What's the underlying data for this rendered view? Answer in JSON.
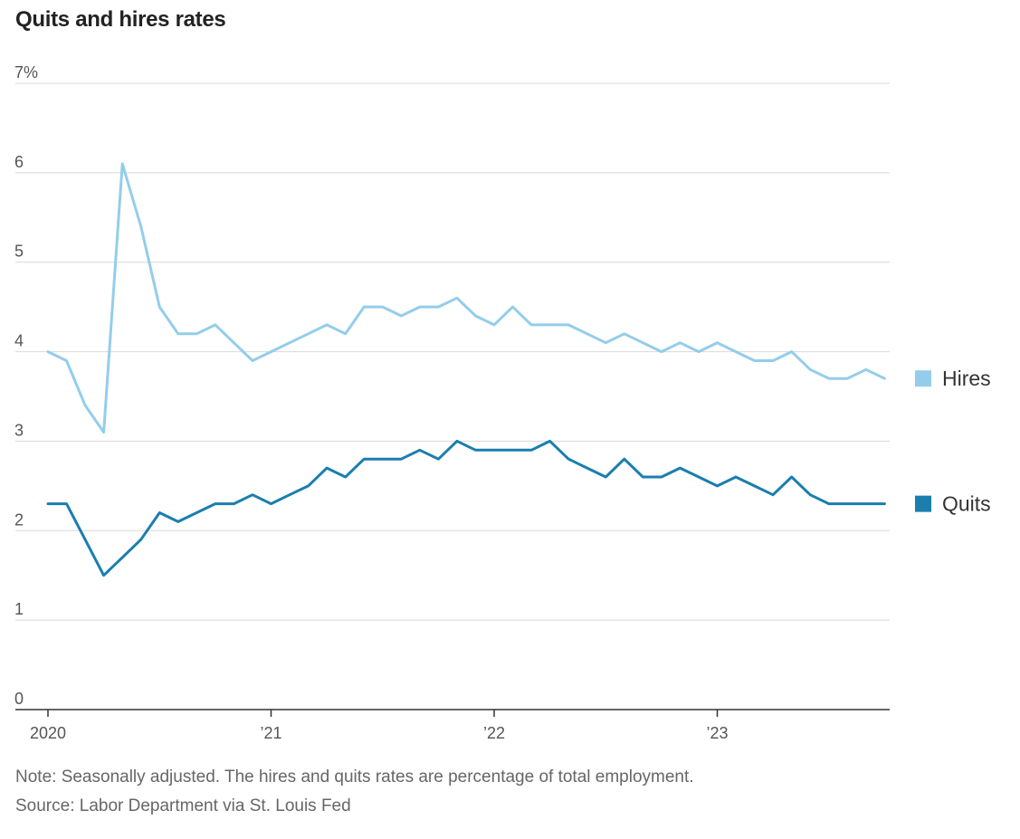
{
  "title": "Quits and hires rates",
  "note": "Note: Seasonally adjusted. The hires and quits rates are percentage of total employment.",
  "source": "Source: Labor Department via St. Louis Fed",
  "colors": {
    "hires": "#94cdeb",
    "quits": "#1a7eaf",
    "grid": "#d9d9d9",
    "axis": "#333333"
  },
  "chart_data": {
    "type": "line",
    "title": "Quits and hires rates",
    "xlabel": "",
    "ylabel": "",
    "ylim": [
      0,
      7
    ],
    "yticks": [
      {
        "value": 0,
        "label": "0"
      },
      {
        "value": 1,
        "label": "1"
      },
      {
        "value": 2,
        "label": "2"
      },
      {
        "value": 3,
        "label": "3"
      },
      {
        "value": 4,
        "label": "4"
      },
      {
        "value": 5,
        "label": "5"
      },
      {
        "value": 6,
        "label": "6"
      },
      {
        "value": 7,
        "label": "7%"
      }
    ],
    "xticks": [
      {
        "value": "2020-01",
        "label": "2020"
      },
      {
        "value": "2021-01",
        "label": "’21"
      },
      {
        "value": "2022-01",
        "label": "’22"
      },
      {
        "value": "2023-01",
        "label": "’23"
      }
    ],
    "x": [
      "2020-01",
      "2020-02",
      "2020-03",
      "2020-04",
      "2020-05",
      "2020-06",
      "2020-07",
      "2020-08",
      "2020-09",
      "2020-10",
      "2020-11",
      "2020-12",
      "2021-01",
      "2021-02",
      "2021-03",
      "2021-04",
      "2021-05",
      "2021-06",
      "2021-07",
      "2021-08",
      "2021-09",
      "2021-10",
      "2021-11",
      "2021-12",
      "2022-01",
      "2022-02",
      "2022-03",
      "2022-04",
      "2022-05",
      "2022-06",
      "2022-07",
      "2022-08",
      "2022-09",
      "2022-10",
      "2022-11",
      "2022-12",
      "2023-01",
      "2023-02",
      "2023-03",
      "2023-04",
      "2023-05",
      "2023-06",
      "2023-07",
      "2023-08",
      "2023-09",
      "2023-10"
    ],
    "grid": true,
    "legend": "right",
    "series": [
      {
        "name": "Hires",
        "color": "#94cdeb",
        "values": [
          4.0,
          3.9,
          3.4,
          3.1,
          6.1,
          5.4,
          4.5,
          4.2,
          4.2,
          4.3,
          4.1,
          3.9,
          4.0,
          4.1,
          4.2,
          4.3,
          4.2,
          4.5,
          4.5,
          4.4,
          4.5,
          4.5,
          4.6,
          4.4,
          4.3,
          4.5,
          4.3,
          4.3,
          4.3,
          4.2,
          4.1,
          4.2,
          4.1,
          4.0,
          4.1,
          4.0,
          4.1,
          4.0,
          3.9,
          3.9,
          4.0,
          3.8,
          3.7,
          3.7,
          3.8,
          3.7
        ]
      },
      {
        "name": "Quits",
        "color": "#1a7eaf",
        "values": [
          2.3,
          2.3,
          1.9,
          1.5,
          1.7,
          1.9,
          2.2,
          2.1,
          2.2,
          2.3,
          2.3,
          2.4,
          2.3,
          2.4,
          2.5,
          2.7,
          2.6,
          2.8,
          2.8,
          2.8,
          2.9,
          2.8,
          3.0,
          2.9,
          2.9,
          2.9,
          2.9,
          3.0,
          2.8,
          2.7,
          2.6,
          2.8,
          2.6,
          2.6,
          2.7,
          2.6,
          2.5,
          2.6,
          2.5,
          2.4,
          2.6,
          2.4,
          2.3,
          2.3,
          2.3,
          2.3
        ]
      }
    ]
  }
}
